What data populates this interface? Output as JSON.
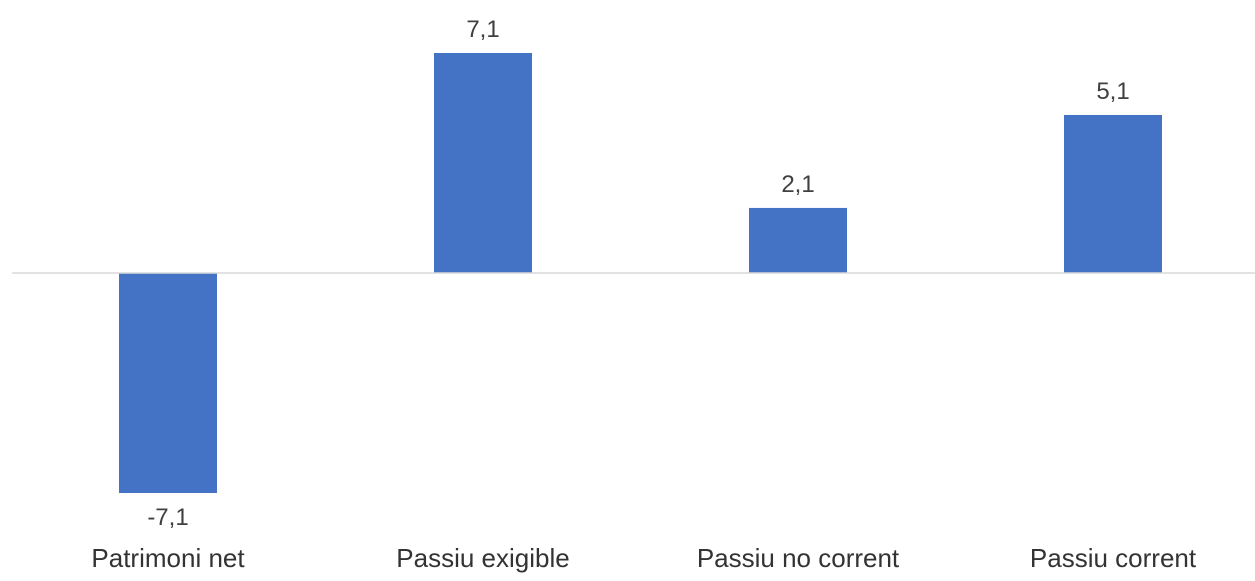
{
  "chart_data": {
    "type": "bar",
    "title": "",
    "xlabel": "",
    "ylabel": "",
    "categories": [
      "Patrimoni net",
      "Passiu exigible",
      "Passiu no corrent",
      "Passiu corrent"
    ],
    "values": [
      -7.1,
      7.1,
      2.1,
      5.1
    ],
    "data_labels": [
      "-7,1",
      "7,1",
      "2,1",
      "5,1"
    ],
    "ylim": [
      -7.1,
      7.1
    ],
    "grid": false,
    "legend": "none",
    "colors": {
      "bar": "#4472C4",
      "axis": "#D9D9D9",
      "text": "#404040",
      "category_text": "#333333"
    }
  }
}
